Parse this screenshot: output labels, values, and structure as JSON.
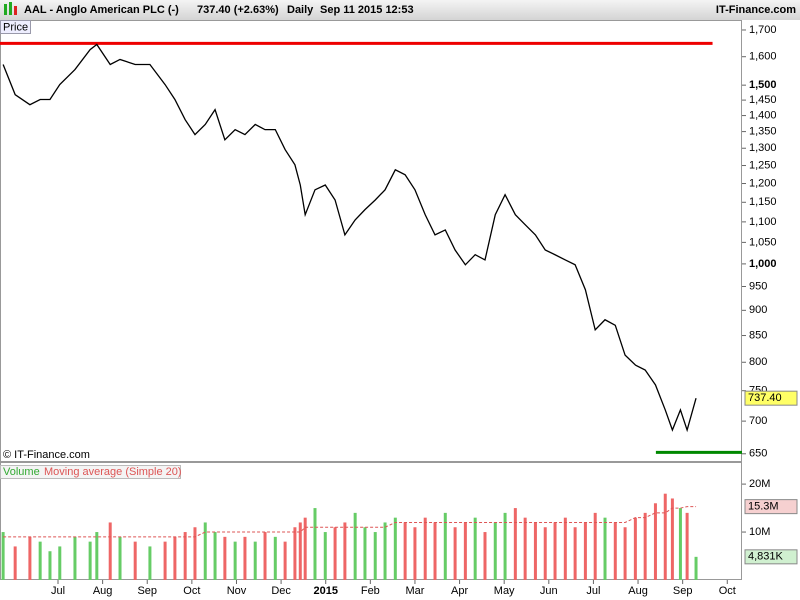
{
  "header": {
    "symbol": "AAL - Anglo American PLC (-)",
    "quote": "737.40 (+2.63%)",
    "period": "Daily",
    "datetime": "Sep 11 2015 12:53",
    "brand": "IT-Finance.com"
  },
  "copyright": "© IT-Finance.com",
  "chart_data": {
    "type": "line",
    "name": "Price",
    "color": "#000000",
    "log_scale": true,
    "x": [
      -1.23,
      -0.96,
      -0.63,
      -0.4,
      -0.18,
      0.04,
      0.38,
      0.72,
      0.87,
      1.17,
      1.39,
      1.73,
      2.06,
      2.4,
      2.62,
      2.85,
      3.07,
      3.3,
      3.52,
      3.74,
      3.97,
      4.19,
      4.42,
      4.64,
      4.87,
      5.09,
      5.31,
      5.43,
      5.54,
      5.76,
      5.99,
      6.21,
      6.43,
      6.66,
      6.88,
      7.11,
      7.33,
      7.56,
      7.78,
      8.0,
      8.23,
      8.45,
      8.68,
      8.9,
      9.13,
      9.35,
      9.57,
      9.8,
      10.02,
      10.25,
      10.47,
      10.7,
      10.92,
      11.14,
      11.37,
      11.59,
      11.82,
      12.04,
      12.26,
      12.49,
      12.71,
      12.94,
      13.16,
      13.39,
      13.61,
      13.77,
      13.95,
      14.1,
      14.3
    ],
    "values": [
      1572,
      1468,
      1435,
      1452,
      1452,
      1502,
      1554,
      1626,
      1645,
      1572,
      1590,
      1572,
      1572,
      1502,
      1452,
      1387,
      1341,
      1372,
      1419,
      1325,
      1356,
      1341,
      1372,
      1356,
      1356,
      1296,
      1252,
      1196,
      1118,
      1183,
      1196,
      1156,
      1068,
      1105,
      1131,
      1156,
      1183,
      1238,
      1224,
      1183,
      1118,
      1068,
      1080,
      1032,
      998,
      1021,
      1009,
      1118,
      1170,
      1118,
      1093,
      1068,
      1032,
      1021,
      1009,
      998,
      943,
      861,
      881,
      870,
      813,
      795,
      786,
      760,
      718,
      686,
      718,
      686,
      737.4
    ],
    "last_label": "737.40",
    "xlim": [
      -1.3,
      15.33
    ],
    "xticks": [
      {
        "value": 0,
        "label": "Jul"
      },
      {
        "value": 1,
        "label": "Aug"
      },
      {
        "value": 2,
        "label": "Sep"
      },
      {
        "value": 3,
        "label": "Oct"
      },
      {
        "value": 4,
        "label": "Nov"
      },
      {
        "value": 5,
        "label": "Dec"
      },
      {
        "value": 6,
        "label": "2015",
        "bold": true
      },
      {
        "value": 7,
        "label": "Feb"
      },
      {
        "value": 8,
        "label": "Mar"
      },
      {
        "value": 9,
        "label": "Apr"
      },
      {
        "value": 10,
        "label": "May"
      },
      {
        "value": 11,
        "label": "Jun"
      },
      {
        "value": 12,
        "label": "Jul"
      },
      {
        "value": 13,
        "label": "Aug"
      },
      {
        "value": 14,
        "label": "Sep"
      },
      {
        "value": 15,
        "label": "Oct"
      }
    ],
    "ylim": [
      638,
      1735
    ],
    "yticks": [
      650,
      700,
      750,
      800,
      850,
      900,
      950,
      {
        "value": 1000,
        "label": "1,000",
        "bold": true
      },
      {
        "value": 1050,
        "label": "1,050"
      },
      {
        "value": 1100,
        "label": "1,100"
      },
      {
        "value": 1150,
        "label": "1,150"
      },
      {
        "value": 1200,
        "label": "1,200"
      },
      {
        "value": 1250,
        "label": "1,250"
      },
      {
        "value": 1300,
        "label": "1,300"
      },
      {
        "value": 1350,
        "label": "1,350"
      },
      {
        "value": 1400,
        "label": "1,400"
      },
      {
        "value": 1450,
        "label": "1,450"
      },
      {
        "value": 1500,
        "label": "1,500",
        "bold": true
      },
      {
        "value": 1600,
        "label": "1,600"
      },
      {
        "value": 1700,
        "label": "1,700"
      }
    ],
    "levels": [
      {
        "value": 1649,
        "color": "#ee0000",
        "from": -1.3,
        "to": 14.67
      },
      {
        "value": 652,
        "color": "#008800",
        "from": 13.4,
        "to": 15.33
      }
    ],
    "volume": {
      "name": "Volume",
      "color_up": "#66cc66",
      "color_down": "#ee6666",
      "values": [
        10,
        7,
        9,
        8,
        6,
        7,
        9,
        8,
        10,
        12,
        9,
        8,
        7,
        8,
        9,
        10,
        11,
        12,
        10,
        9,
        8,
        9,
        8,
        10,
        9,
        8,
        11,
        12,
        13,
        15,
        10,
        11,
        12,
        14,
        11,
        10,
        12,
        13,
        12,
        11,
        13,
        12,
        14,
        11,
        12,
        13,
        10,
        12,
        14,
        15,
        13,
        12,
        11,
        12,
        13,
        11,
        12,
        14,
        13,
        12,
        11,
        13,
        14,
        16,
        18,
        17,
        15,
        14,
        4.831
      ],
      "last_label": "4,831K",
      "ylim": [
        0,
        24.4
      ],
      "yticks": [
        {
          "value": 10,
          "label": "10M"
        },
        {
          "value": 20,
          "label": "20M"
        }
      ]
    },
    "moving_average": {
      "name": "Moving average (Simple 20)",
      "color": "#dd5555",
      "values": [
        9,
        9,
        9,
        9,
        9,
        9,
        9,
        9,
        9,
        9,
        9,
        9,
        9,
        9,
        9,
        9,
        9,
        10,
        10,
        10,
        10,
        10,
        10,
        10,
        10,
        10,
        10,
        10,
        11,
        11,
        11,
        11,
        11,
        11,
        11,
        11,
        11,
        12,
        12,
        12,
        12,
        12,
        12,
        12,
        12,
        12,
        12,
        12,
        12,
        12,
        12,
        12,
        12,
        12,
        12,
        12,
        12,
        12,
        12,
        12,
        12,
        13,
        13,
        14,
        14,
        15,
        15,
        15.3,
        15.3
      ],
      "last_label": "15.3M"
    }
  }
}
